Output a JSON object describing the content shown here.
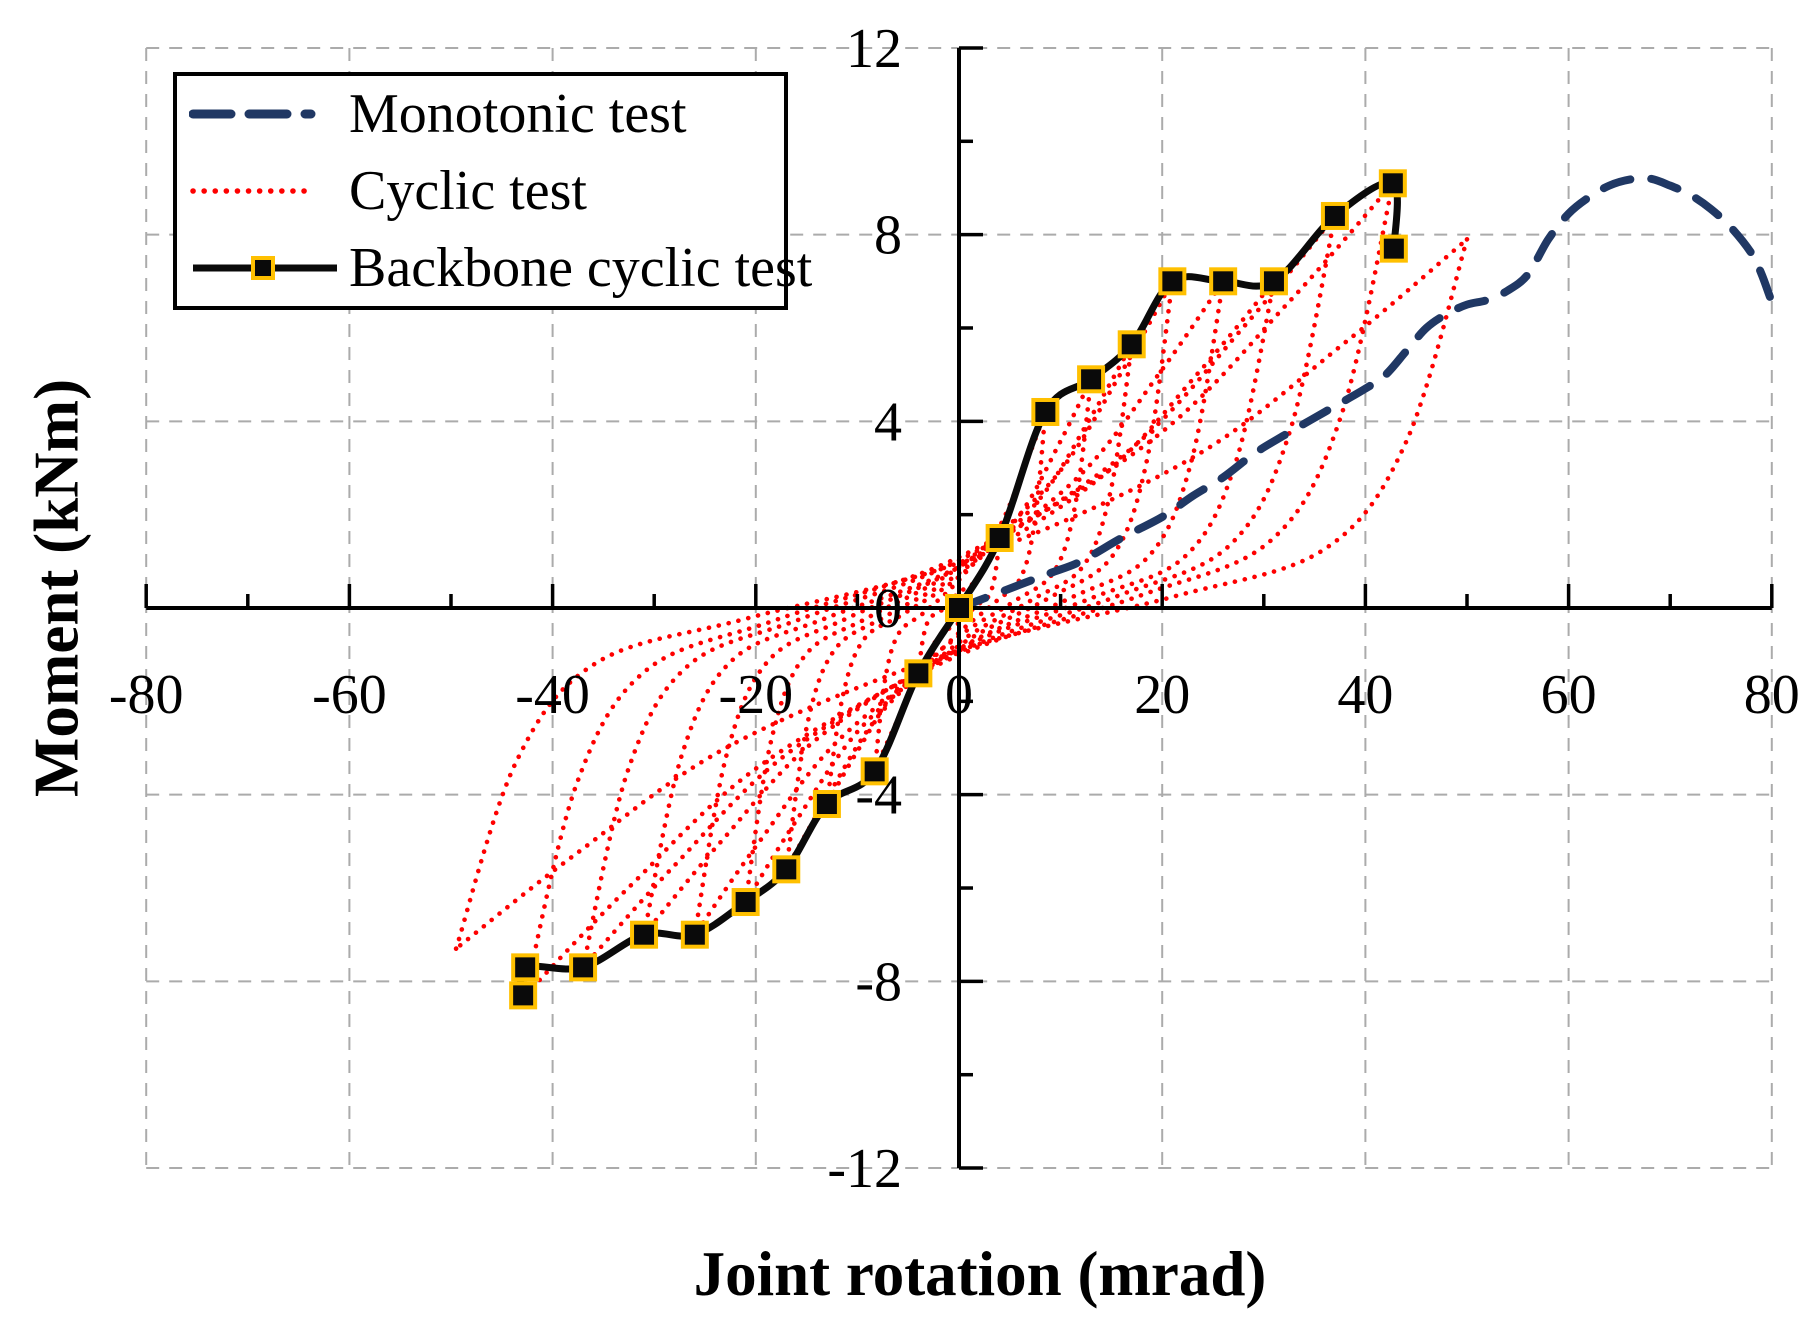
{
  "page": {
    "background": "#FFFFFF"
  },
  "chart_data": {
    "type": "line",
    "title": "",
    "xlabel": "Joint rotation (mrad)",
    "ylabel": "Moment (kNm)",
    "xlim": [
      -80,
      80
    ],
    "ylim": [
      -12,
      12
    ],
    "x_ticks": [
      -80,
      -60,
      -40,
      -20,
      0,
      20,
      40,
      60,
      80
    ],
    "y_ticks": [
      12,
      8,
      4,
      0,
      -4,
      -8,
      -12
    ],
    "x_minor_step": 10,
    "y_minor_step": 2,
    "grid": true,
    "grid_color": "#ABABAB",
    "axis_color": "#000000",
    "legend_position": "top-left",
    "series": [
      {
        "name": "Monotonic test",
        "type": "line",
        "style": "dashed",
        "color": "#203864",
        "points": [
          [
            0,
            0
          ],
          [
            3,
            0.25
          ],
          [
            6,
            0.5
          ],
          [
            9,
            0.75
          ],
          [
            12,
            1.0
          ],
          [
            16,
            1.5
          ],
          [
            20,
            1.95
          ],
          [
            23,
            2.4
          ],
          [
            26,
            2.8
          ],
          [
            29,
            3.3
          ],
          [
            32,
            3.7
          ],
          [
            36,
            4.2
          ],
          [
            40,
            4.7
          ],
          [
            42,
            5.0
          ],
          [
            44,
            5.5
          ],
          [
            46,
            6.0
          ],
          [
            48,
            6.3
          ],
          [
            50,
            6.5
          ],
          [
            52,
            6.6
          ],
          [
            54,
            6.8
          ],
          [
            56,
            7.15
          ],
          [
            58,
            7.9
          ],
          [
            60,
            8.45
          ],
          [
            62,
            8.8
          ],
          [
            64,
            9.05
          ],
          [
            66,
            9.18
          ],
          [
            68,
            9.2
          ],
          [
            70,
            9.05
          ],
          [
            72,
            8.85
          ],
          [
            74,
            8.55
          ],
          [
            76,
            8.15
          ],
          [
            78,
            7.6
          ],
          [
            79,
            7.15
          ],
          [
            80,
            6.55
          ]
        ]
      },
      {
        "name": "Cyclic test",
        "type": "hysteresis-loops",
        "style": "dotted",
        "color": "#FE0000",
        "cycles": [
          {
            "rot_pos": 4,
            "m_pos": 1.5,
            "rot_neg": -4,
            "m_neg": -1.4
          },
          {
            "rot_pos": 8.5,
            "m_pos": 4.2,
            "rot_neg": -8.3,
            "m_neg": -3.5
          },
          {
            "rot_pos": 13,
            "m_pos": 4.9,
            "rot_neg": -13,
            "m_neg": -4.2
          },
          {
            "rot_pos": 17,
            "m_pos": 5.65,
            "rot_neg": -17,
            "m_neg": -5.6
          },
          {
            "rot_pos": 21,
            "m_pos": 7.0,
            "rot_neg": -21,
            "m_neg": -6.3
          },
          {
            "rot_pos": 26,
            "m_pos": 7.0,
            "rot_neg": -26,
            "m_neg": -7.0
          },
          {
            "rot_pos": 31,
            "m_pos": 7.0,
            "rot_neg": -31,
            "m_neg": -7.0
          },
          {
            "rot_pos": 37,
            "m_pos": 8.4,
            "rot_neg": -37,
            "m_neg": -7.7
          },
          {
            "rot_pos": 42.7,
            "m_pos": 9.1,
            "rot_neg": -42.7,
            "m_neg": -8.3
          },
          {
            "rot_pos": 50,
            "m_pos": 7.9,
            "rot_neg": -49.5,
            "m_neg": -7.3
          }
        ]
      },
      {
        "name": "Backbone cyclic test",
        "type": "line",
        "style": "solid",
        "color": "#0A0A0A",
        "marker": "square",
        "marker_fill": "#0A0A0A",
        "marker_edge": "#FFC000",
        "points": [
          [
            -42.9,
            -8.3
          ],
          [
            -42.7,
            -7.7
          ],
          [
            -37,
            -7.7
          ],
          [
            -31,
            -7.0
          ],
          [
            -26,
            -7.0
          ],
          [
            -21,
            -6.3
          ],
          [
            -17,
            -5.6
          ],
          [
            -13,
            -4.2
          ],
          [
            -8.3,
            -3.5
          ],
          [
            -4,
            -1.4
          ],
          [
            0,
            0
          ],
          [
            4,
            1.5
          ],
          [
            8.5,
            4.2
          ],
          [
            13,
            4.9
          ],
          [
            17,
            5.65
          ],
          [
            21,
            7.0
          ],
          [
            26,
            7.0
          ],
          [
            31,
            7.0
          ],
          [
            37,
            8.4
          ],
          [
            42.7,
            9.1
          ],
          [
            42.8,
            7.7
          ]
        ]
      }
    ]
  }
}
